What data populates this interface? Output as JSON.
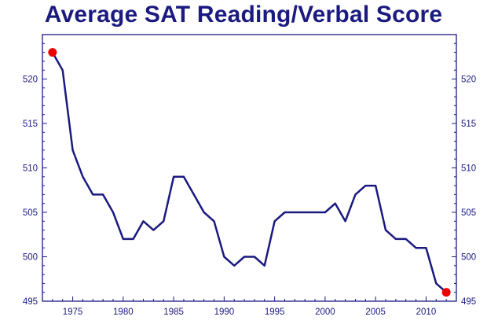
{
  "chart_data": {
    "type": "line",
    "title": "Average SAT Reading/Verbal Score",
    "xlabel": "",
    "ylabel": "",
    "xlim": [
      1972,
      2013
    ],
    "ylim": [
      495,
      525
    ],
    "x_ticks": [
      "1975",
      "1980",
      "1985",
      "1990",
      "1995",
      "2000",
      "2005",
      "2010"
    ],
    "y_ticks": [
      "495",
      "500",
      "505",
      "510",
      "515",
      "520"
    ],
    "grid": false,
    "legend": "none",
    "line_color": "#1a1a80",
    "endpoint_color": "#ee0000",
    "axis_color": "#1a1a80",
    "series": [
      {
        "x": [
          1973,
          1974,
          1975,
          1976,
          1977,
          1978,
          1979,
          1980,
          1981,
          1982,
          1983,
          1984,
          1985,
          1986,
          1987,
          1988,
          1989,
          1990,
          1991,
          1992,
          1993,
          1994,
          1995,
          1996,
          1997,
          1998,
          1999,
          2000,
          2001,
          2002,
          2003,
          2004,
          2005,
          2006,
          2007,
          2008,
          2009,
          2010,
          2011,
          2012
        ],
        "y": [
          523,
          521,
          512,
          509,
          507,
          507,
          505,
          502,
          502,
          504,
          503,
          504,
          509,
          509,
          507,
          505,
          504,
          500,
          499,
          500,
          500,
          499,
          504,
          505,
          505,
          505,
          505,
          505,
          506,
          504,
          507,
          508,
          508,
          503,
          502,
          502,
          501,
          501,
          497,
          496
        ]
      }
    ]
  }
}
